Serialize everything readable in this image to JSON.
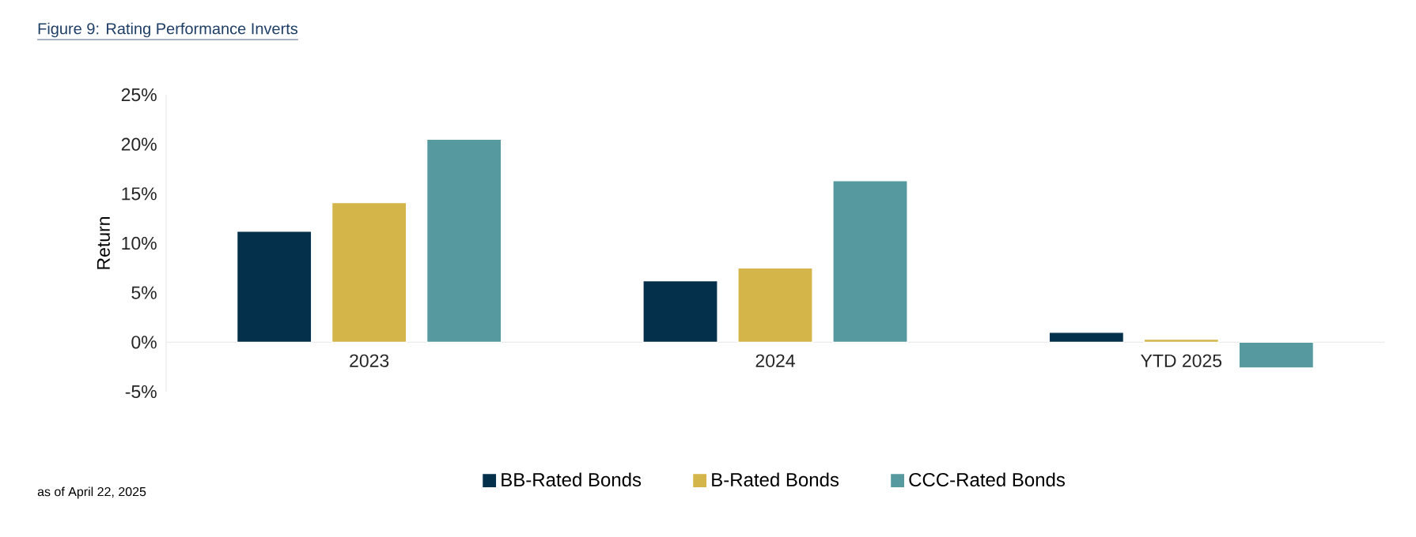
{
  "chart_data": {
    "type": "bar",
    "title": "Figure 9: Rating Performance Inverts",
    "ylabel": "Return",
    "categories": [
      "2023",
      "2024",
      "YTD 2025"
    ],
    "series": [
      {
        "name": "BB-Rated Bonds",
        "color": "#04304b",
        "values": [
          11.2,
          6.2,
          1.0
        ]
      },
      {
        "name": "B-Rated Bonds",
        "color": "#d4b549",
        "values": [
          14.1,
          7.5,
          0.3
        ]
      },
      {
        "name": "CCC-Rated Bonds",
        "color": "#56999f",
        "values": [
          20.5,
          16.3,
          -2.6
        ]
      }
    ],
    "ylim": [
      -5,
      25
    ],
    "yticks": [
      {
        "value": -5,
        "label": "-5%"
      },
      {
        "value": 0,
        "label": "0%"
      },
      {
        "value": 5,
        "label": "5%"
      },
      {
        "value": 10,
        "label": "10%"
      },
      {
        "value": 15,
        "label": "15%"
      },
      {
        "value": 20,
        "label": "20%"
      },
      {
        "value": 25,
        "label": "25%"
      }
    ],
    "grid": false,
    "legend": "bottom",
    "annotations": [
      "as of April 22, 2025"
    ]
  }
}
